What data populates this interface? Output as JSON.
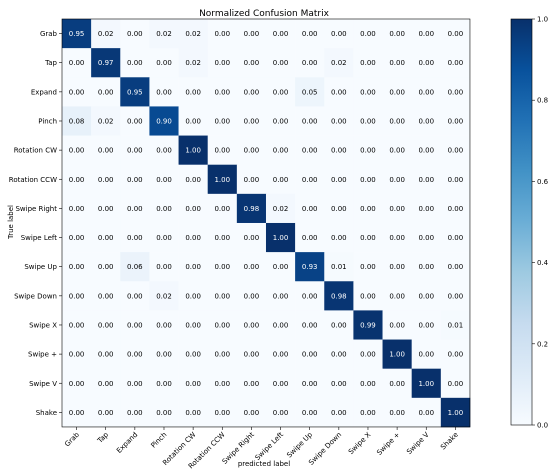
{
  "chart_data": {
    "type": "heatmap",
    "title": "Normalized Confusion Matrix",
    "xlabel": "predicted label",
    "ylabel": "True label",
    "labels": [
      "Grab",
      "Tap",
      "Expand",
      "Pinch",
      "Rotation CW",
      "Rotation CCW",
      "Swipe Right",
      "Swipe Left",
      "Swipe Up",
      "Swipe Down",
      "Swipe X",
      "Swipe +",
      "Swipe V",
      "Shake"
    ],
    "matrix": [
      [
        0.95,
        0.02,
        0.0,
        0.02,
        0.02,
        0.0,
        0.0,
        0.0,
        0.0,
        0.0,
        0.0,
        0.0,
        0.0,
        0.0
      ],
      [
        0.0,
        0.97,
        0.0,
        0.0,
        0.02,
        0.0,
        0.0,
        0.0,
        0.0,
        0.02,
        0.0,
        0.0,
        0.0,
        0.0
      ],
      [
        0.0,
        0.0,
        0.95,
        0.0,
        0.0,
        0.0,
        0.0,
        0.0,
        0.05,
        0.0,
        0.0,
        0.0,
        0.0,
        0.0
      ],
      [
        0.08,
        0.02,
        0.0,
        0.9,
        0.0,
        0.0,
        0.0,
        0.0,
        0.0,
        0.0,
        0.0,
        0.0,
        0.0,
        0.0
      ],
      [
        0.0,
        0.0,
        0.0,
        0.0,
        1.0,
        0.0,
        0.0,
        0.0,
        0.0,
        0.0,
        0.0,
        0.0,
        0.0,
        0.0
      ],
      [
        0.0,
        0.0,
        0.0,
        0.0,
        0.0,
        1.0,
        0.0,
        0.0,
        0.0,
        0.0,
        0.0,
        0.0,
        0.0,
        0.0
      ],
      [
        0.0,
        0.0,
        0.0,
        0.0,
        0.0,
        0.0,
        0.98,
        0.02,
        0.0,
        0.0,
        0.0,
        0.0,
        0.0,
        0.0
      ],
      [
        0.0,
        0.0,
        0.0,
        0.0,
        0.0,
        0.0,
        0.0,
        1.0,
        0.0,
        0.0,
        0.0,
        0.0,
        0.0,
        0.0
      ],
      [
        0.0,
        0.0,
        0.06,
        0.0,
        0.0,
        0.0,
        0.0,
        0.0,
        0.93,
        0.01,
        0.0,
        0.0,
        0.0,
        0.0
      ],
      [
        0.0,
        0.0,
        0.0,
        0.02,
        0.0,
        0.0,
        0.0,
        0.0,
        0.0,
        0.98,
        0.0,
        0.0,
        0.0,
        0.0
      ],
      [
        0.0,
        0.0,
        0.0,
        0.0,
        0.0,
        0.0,
        0.0,
        0.0,
        0.0,
        0.0,
        0.99,
        0.0,
        0.0,
        0.01
      ],
      [
        0.0,
        0.0,
        0.0,
        0.0,
        0.0,
        0.0,
        0.0,
        0.0,
        0.0,
        0.0,
        0.0,
        1.0,
        0.0,
        0.0
      ],
      [
        0.0,
        0.0,
        0.0,
        0.0,
        0.0,
        0.0,
        0.0,
        0.0,
        0.0,
        0.0,
        0.0,
        0.0,
        1.0,
        0.0
      ],
      [
        0.0,
        0.0,
        0.0,
        0.0,
        0.0,
        0.0,
        0.0,
        0.0,
        0.0,
        0.0,
        0.0,
        0.0,
        0.0,
        1.0
      ]
    ],
    "value_format_decimals": 2,
    "colormap": "Blues",
    "colormap_stops": [
      "#f7fbff",
      "#deebf7",
      "#c6dbef",
      "#9ecae1",
      "#6baed6",
      "#4292c6",
      "#2171b5",
      "#08519c",
      "#08306b"
    ],
    "colorbar": {
      "range": [
        0.0,
        1.0
      ],
      "ticks": [
        "0.0",
        "0.2",
        "0.4",
        "0.6",
        "0.8",
        "1.0"
      ]
    },
    "grid": false
  }
}
